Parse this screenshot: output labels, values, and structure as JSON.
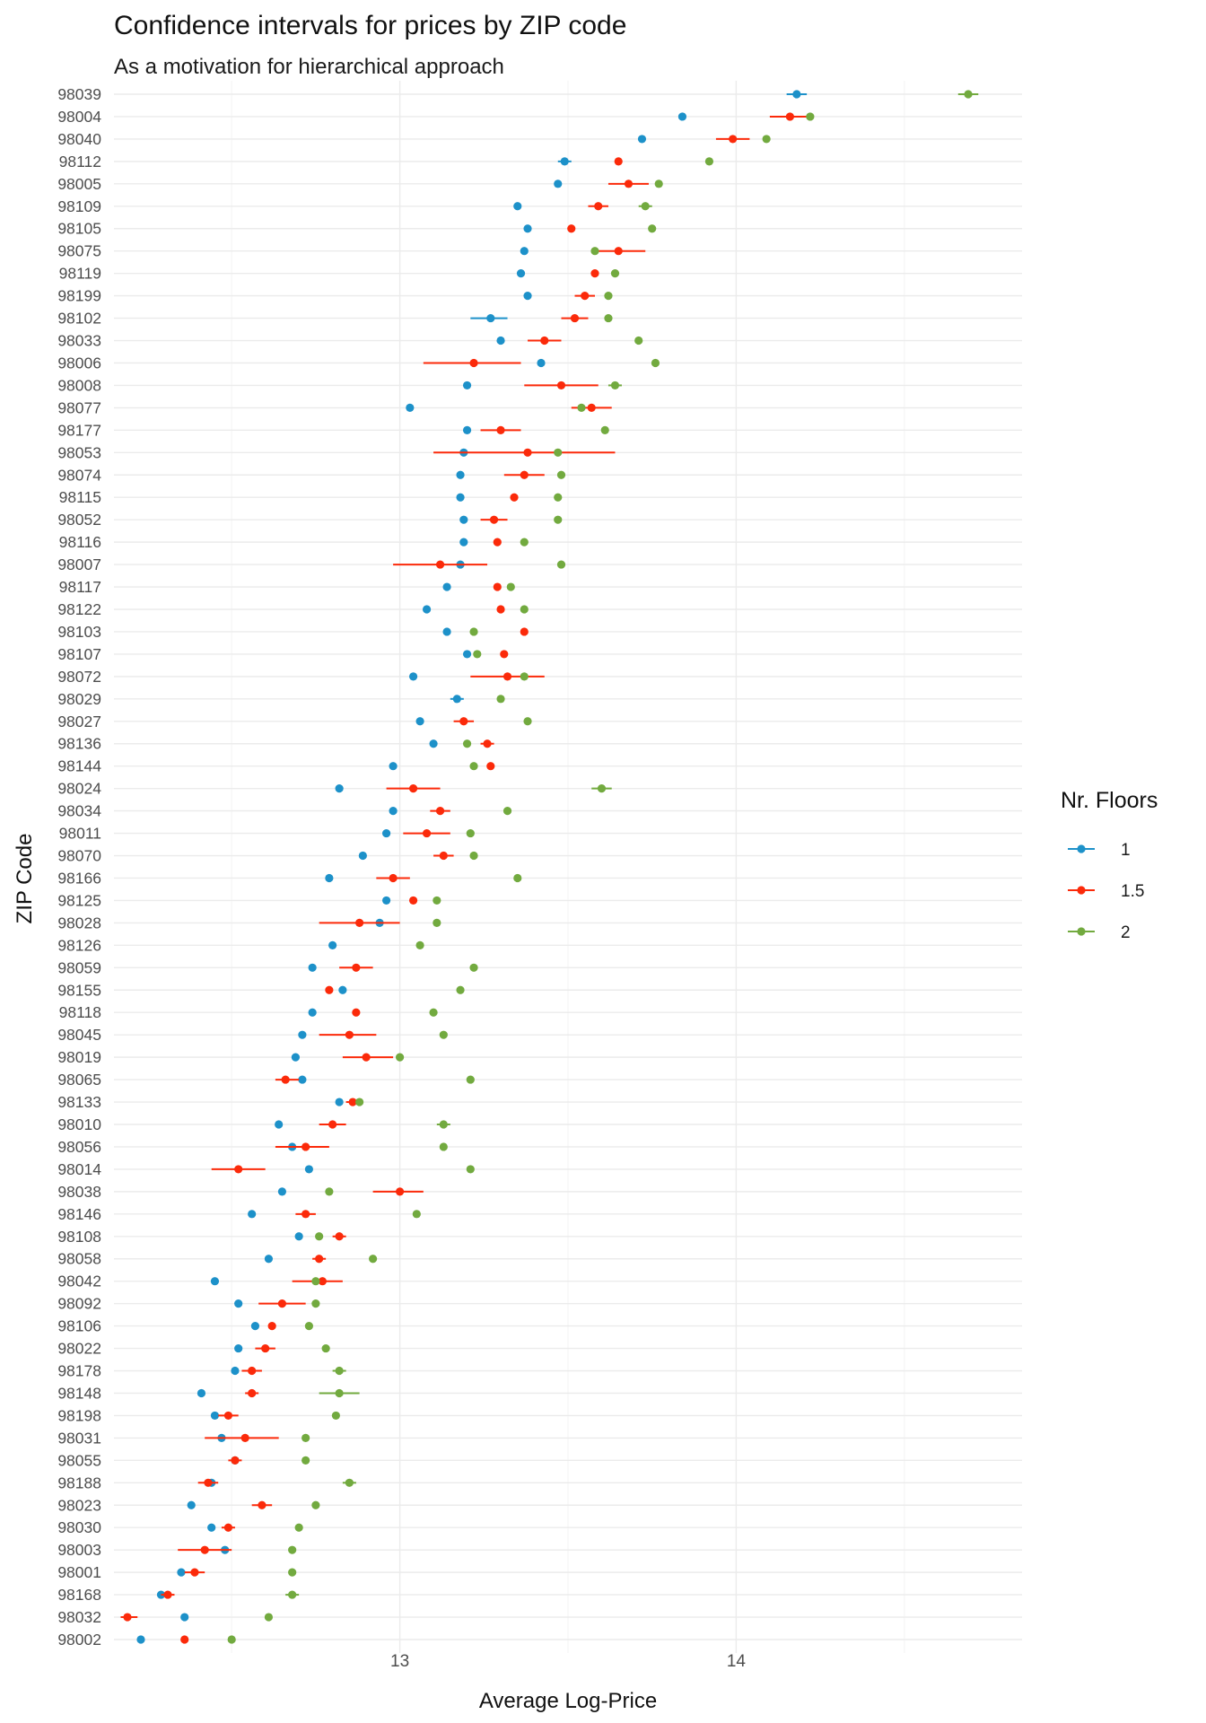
{
  "chart_data": {
    "type": "scatter",
    "title": "Confidence intervals for prices by ZIP code",
    "subtitle": "As a motivation for hierarchical approach",
    "xlabel": "Average Log-Price",
    "ylabel": "ZIP Code",
    "xlim": [
      12.15,
      14.85
    ],
    "x_ticks": [
      13,
      14
    ],
    "x_tick_labels": [
      "13",
      "14"
    ],
    "grid": true,
    "legend": {
      "title": "Nr. Floors",
      "position": "right",
      "entries": [
        "1",
        "1.5",
        "2"
      ]
    },
    "colors": [
      "#1d91c9",
      "#fb2a0a",
      "#72aa3f"
    ],
    "categories": [
      "98039",
      "98004",
      "98040",
      "98112",
      "98005",
      "98109",
      "98105",
      "98075",
      "98119",
      "98199",
      "98102",
      "98033",
      "98006",
      "98008",
      "98077",
      "98177",
      "98053",
      "98074",
      "98115",
      "98052",
      "98116",
      "98007",
      "98117",
      "98122",
      "98103",
      "98107",
      "98072",
      "98029",
      "98027",
      "98136",
      "98144",
      "98024",
      "98034",
      "98011",
      "98070",
      "98166",
      "98125",
      "98028",
      "98126",
      "98059",
      "98155",
      "98118",
      "98045",
      "98019",
      "98065",
      "98133",
      "98010",
      "98056",
      "98014",
      "98038",
      "98146",
      "98108",
      "98058",
      "98042",
      "98092",
      "98106",
      "98022",
      "98178",
      "98148",
      "98198",
      "98031",
      "98055",
      "98188",
      "98023",
      "98030",
      "98003",
      "98001",
      "98168",
      "98032",
      "98002"
    ],
    "series": [
      {
        "name": "1",
        "values": [
          [
            14.18,
            14.15,
            14.21
          ],
          [
            13.84,
            null,
            null
          ],
          [
            13.72,
            null,
            null
          ],
          [
            13.49,
            13.47,
            13.51
          ],
          [
            13.47,
            null,
            null
          ],
          [
            13.35,
            null,
            null
          ],
          [
            13.38,
            null,
            null
          ],
          [
            13.37,
            null,
            null
          ],
          [
            13.36,
            null,
            null
          ],
          [
            13.38,
            null,
            null
          ],
          [
            13.27,
            13.21,
            13.32
          ],
          [
            13.3,
            null,
            null
          ],
          [
            13.42,
            null,
            null
          ],
          [
            13.2,
            null,
            null
          ],
          [
            13.03,
            null,
            null
          ],
          [
            13.2,
            null,
            null
          ],
          [
            13.19,
            null,
            null
          ],
          [
            13.18,
            null,
            null
          ],
          [
            13.18,
            null,
            null
          ],
          [
            13.19,
            null,
            null
          ],
          [
            13.19,
            null,
            null
          ],
          [
            13.18,
            null,
            null
          ],
          [
            13.14,
            null,
            null
          ],
          [
            13.08,
            null,
            null
          ],
          [
            13.14,
            null,
            null
          ],
          [
            13.2,
            null,
            null
          ],
          [
            13.04,
            null,
            null
          ],
          [
            13.17,
            13.15,
            13.19
          ],
          [
            13.06,
            null,
            null
          ],
          [
            13.1,
            null,
            null
          ],
          [
            12.98,
            null,
            null
          ],
          [
            12.82,
            null,
            null
          ],
          [
            12.98,
            null,
            null
          ],
          [
            12.96,
            null,
            null
          ],
          [
            12.89,
            null,
            null
          ],
          [
            12.79,
            null,
            null
          ],
          [
            12.96,
            null,
            null
          ],
          [
            12.94,
            null,
            null
          ],
          [
            12.8,
            null,
            null
          ],
          [
            12.74,
            null,
            null
          ],
          [
            12.83,
            null,
            null
          ],
          [
            12.74,
            null,
            null
          ],
          [
            12.71,
            null,
            null
          ],
          [
            12.69,
            null,
            null
          ],
          [
            12.71,
            null,
            null
          ],
          [
            12.82,
            null,
            null
          ],
          [
            12.64,
            null,
            null
          ],
          [
            12.68,
            null,
            null
          ],
          [
            12.73,
            null,
            null
          ],
          [
            12.65,
            null,
            null
          ],
          [
            12.56,
            null,
            null
          ],
          [
            12.7,
            null,
            null
          ],
          [
            12.61,
            null,
            null
          ],
          [
            12.45,
            null,
            null
          ],
          [
            12.52,
            null,
            null
          ],
          [
            12.57,
            null,
            null
          ],
          [
            12.52,
            null,
            null
          ],
          [
            12.51,
            null,
            null
          ],
          [
            12.41,
            null,
            null
          ],
          [
            12.45,
            null,
            null
          ],
          [
            12.47,
            null,
            null
          ],
          [
            12.51,
            null,
            null
          ],
          [
            12.44,
            null,
            null
          ],
          [
            12.38,
            null,
            null
          ],
          [
            12.44,
            null,
            null
          ],
          [
            12.48,
            null,
            null
          ],
          [
            12.35,
            null,
            null
          ],
          [
            12.29,
            null,
            null
          ],
          [
            12.36,
            null,
            null
          ],
          [
            12.23,
            null,
            null
          ]
        ]
      },
      {
        "name": "1.5",
        "values": [
          null,
          [
            14.16,
            14.1,
            14.22
          ],
          [
            13.99,
            13.94,
            14.04
          ],
          [
            13.65,
            null,
            null
          ],
          [
            13.68,
            13.62,
            13.74
          ],
          [
            13.59,
            13.56,
            13.62
          ],
          [
            13.51,
            null,
            null
          ],
          [
            13.65,
            13.57,
            13.73
          ],
          [
            13.58,
            null,
            null
          ],
          [
            13.55,
            13.52,
            13.58
          ],
          [
            13.52,
            13.48,
            13.56
          ],
          [
            13.43,
            13.38,
            13.48
          ],
          [
            13.22,
            13.07,
            13.36
          ],
          [
            13.48,
            13.37,
            13.59
          ],
          [
            13.57,
            13.51,
            13.63
          ],
          [
            13.3,
            13.24,
            13.36
          ],
          [
            13.38,
            13.1,
            13.64
          ],
          [
            13.37,
            13.31,
            13.43
          ],
          [
            13.34,
            null,
            null
          ],
          [
            13.28,
            13.24,
            13.32
          ],
          [
            13.29,
            null,
            null
          ],
          [
            13.12,
            12.98,
            13.26
          ],
          [
            13.29,
            null,
            null
          ],
          [
            13.3,
            null,
            null
          ],
          [
            13.37,
            null,
            null
          ],
          [
            13.31,
            null,
            null
          ],
          [
            13.32,
            13.21,
            13.43
          ],
          null,
          [
            13.19,
            13.16,
            13.22
          ],
          [
            13.26,
            13.24,
            13.28
          ],
          [
            13.27,
            null,
            null
          ],
          [
            13.04,
            12.96,
            13.12
          ],
          [
            13.12,
            13.09,
            13.15
          ],
          [
            13.08,
            13.01,
            13.15
          ],
          [
            13.13,
            13.1,
            13.16
          ],
          [
            12.98,
            12.93,
            13.03
          ],
          [
            13.04,
            null,
            null
          ],
          [
            12.88,
            12.76,
            13.0
          ],
          null,
          [
            12.87,
            12.82,
            12.92
          ],
          [
            12.79,
            null,
            null
          ],
          [
            12.87,
            null,
            null
          ],
          [
            12.85,
            12.76,
            12.93
          ],
          [
            12.9,
            12.83,
            12.98
          ],
          [
            12.66,
            12.63,
            12.7
          ],
          [
            12.86,
            12.84,
            12.88
          ],
          [
            12.8,
            12.76,
            12.84
          ],
          [
            12.72,
            12.63,
            12.79
          ],
          [
            12.52,
            12.44,
            12.6
          ],
          [
            13.0,
            12.92,
            13.07
          ],
          [
            12.72,
            12.69,
            12.75
          ],
          [
            12.82,
            12.8,
            12.84
          ],
          [
            12.76,
            12.74,
            12.78
          ],
          [
            12.77,
            12.68,
            12.83
          ],
          [
            12.65,
            12.58,
            12.72
          ],
          [
            12.62,
            null,
            null
          ],
          [
            12.6,
            12.57,
            12.63
          ],
          [
            12.56,
            12.53,
            12.59
          ],
          [
            12.56,
            12.54,
            12.58
          ],
          [
            12.49,
            12.46,
            12.52
          ],
          [
            12.54,
            12.42,
            12.64
          ],
          [
            12.51,
            12.49,
            12.53
          ],
          [
            12.43,
            12.4,
            12.46
          ],
          [
            12.59,
            12.56,
            12.62
          ],
          [
            12.49,
            12.47,
            12.51
          ],
          [
            12.42,
            12.34,
            12.5
          ],
          [
            12.39,
            12.36,
            12.42
          ],
          [
            12.31,
            12.29,
            12.33
          ],
          [
            12.19,
            12.17,
            12.22
          ],
          [
            12.36,
            null,
            null
          ]
        ]
      },
      {
        "name": "2",
        "values": [
          [
            14.69,
            14.66,
            14.72
          ],
          [
            14.22,
            null,
            null
          ],
          [
            14.09,
            null,
            null
          ],
          [
            13.92,
            null,
            null
          ],
          [
            13.77,
            null,
            null
          ],
          [
            13.73,
            13.71,
            13.75
          ],
          [
            13.75,
            null,
            null
          ],
          [
            13.58,
            null,
            null
          ],
          [
            13.64,
            null,
            null
          ],
          [
            13.62,
            null,
            null
          ],
          [
            13.62,
            null,
            null
          ],
          [
            13.71,
            null,
            null
          ],
          [
            13.76,
            null,
            null
          ],
          [
            13.64,
            13.62,
            13.66
          ],
          [
            13.54,
            null,
            null
          ],
          [
            13.61,
            null,
            null
          ],
          [
            13.47,
            null,
            null
          ],
          [
            13.48,
            null,
            null
          ],
          [
            13.47,
            null,
            null
          ],
          [
            13.47,
            null,
            null
          ],
          [
            13.37,
            null,
            null
          ],
          [
            13.48,
            null,
            null
          ],
          [
            13.33,
            null,
            null
          ],
          [
            13.37,
            null,
            null
          ],
          [
            13.22,
            null,
            null
          ],
          [
            13.23,
            null,
            null
          ],
          [
            13.37,
            null,
            null
          ],
          [
            13.3,
            null,
            null
          ],
          [
            13.38,
            null,
            null
          ],
          [
            13.2,
            null,
            null
          ],
          [
            13.22,
            null,
            null
          ],
          [
            13.6,
            13.57,
            13.63
          ],
          [
            13.32,
            null,
            null
          ],
          [
            13.21,
            null,
            null
          ],
          [
            13.22,
            null,
            null
          ],
          [
            13.35,
            null,
            null
          ],
          [
            13.11,
            null,
            null
          ],
          [
            13.11,
            null,
            null
          ],
          [
            13.06,
            null,
            null
          ],
          [
            13.22,
            null,
            null
          ],
          [
            13.18,
            null,
            null
          ],
          [
            13.1,
            null,
            null
          ],
          [
            13.13,
            null,
            null
          ],
          [
            13.0,
            null,
            null
          ],
          [
            13.21,
            null,
            null
          ],
          [
            12.88,
            null,
            null
          ],
          [
            13.13,
            13.11,
            13.15
          ],
          [
            13.13,
            null,
            null
          ],
          [
            13.21,
            null,
            null
          ],
          [
            12.79,
            null,
            null
          ],
          [
            13.05,
            null,
            null
          ],
          [
            12.76,
            null,
            null
          ],
          [
            12.92,
            null,
            null
          ],
          [
            12.75,
            null,
            null
          ],
          [
            12.75,
            null,
            null
          ],
          [
            12.73,
            null,
            null
          ],
          [
            12.78,
            null,
            null
          ],
          [
            12.82,
            12.8,
            12.84
          ],
          [
            12.82,
            12.76,
            12.88
          ],
          [
            12.81,
            null,
            null
          ],
          [
            12.72,
            null,
            null
          ],
          [
            12.72,
            null,
            null
          ],
          [
            12.85,
            12.83,
            12.87
          ],
          [
            12.75,
            null,
            null
          ],
          [
            12.7,
            null,
            null
          ],
          [
            12.68,
            null,
            null
          ],
          [
            12.68,
            null,
            null
          ],
          [
            12.68,
            12.66,
            12.7
          ],
          [
            12.61,
            null,
            null
          ],
          [
            12.5,
            null,
            null
          ]
        ]
      }
    ]
  }
}
